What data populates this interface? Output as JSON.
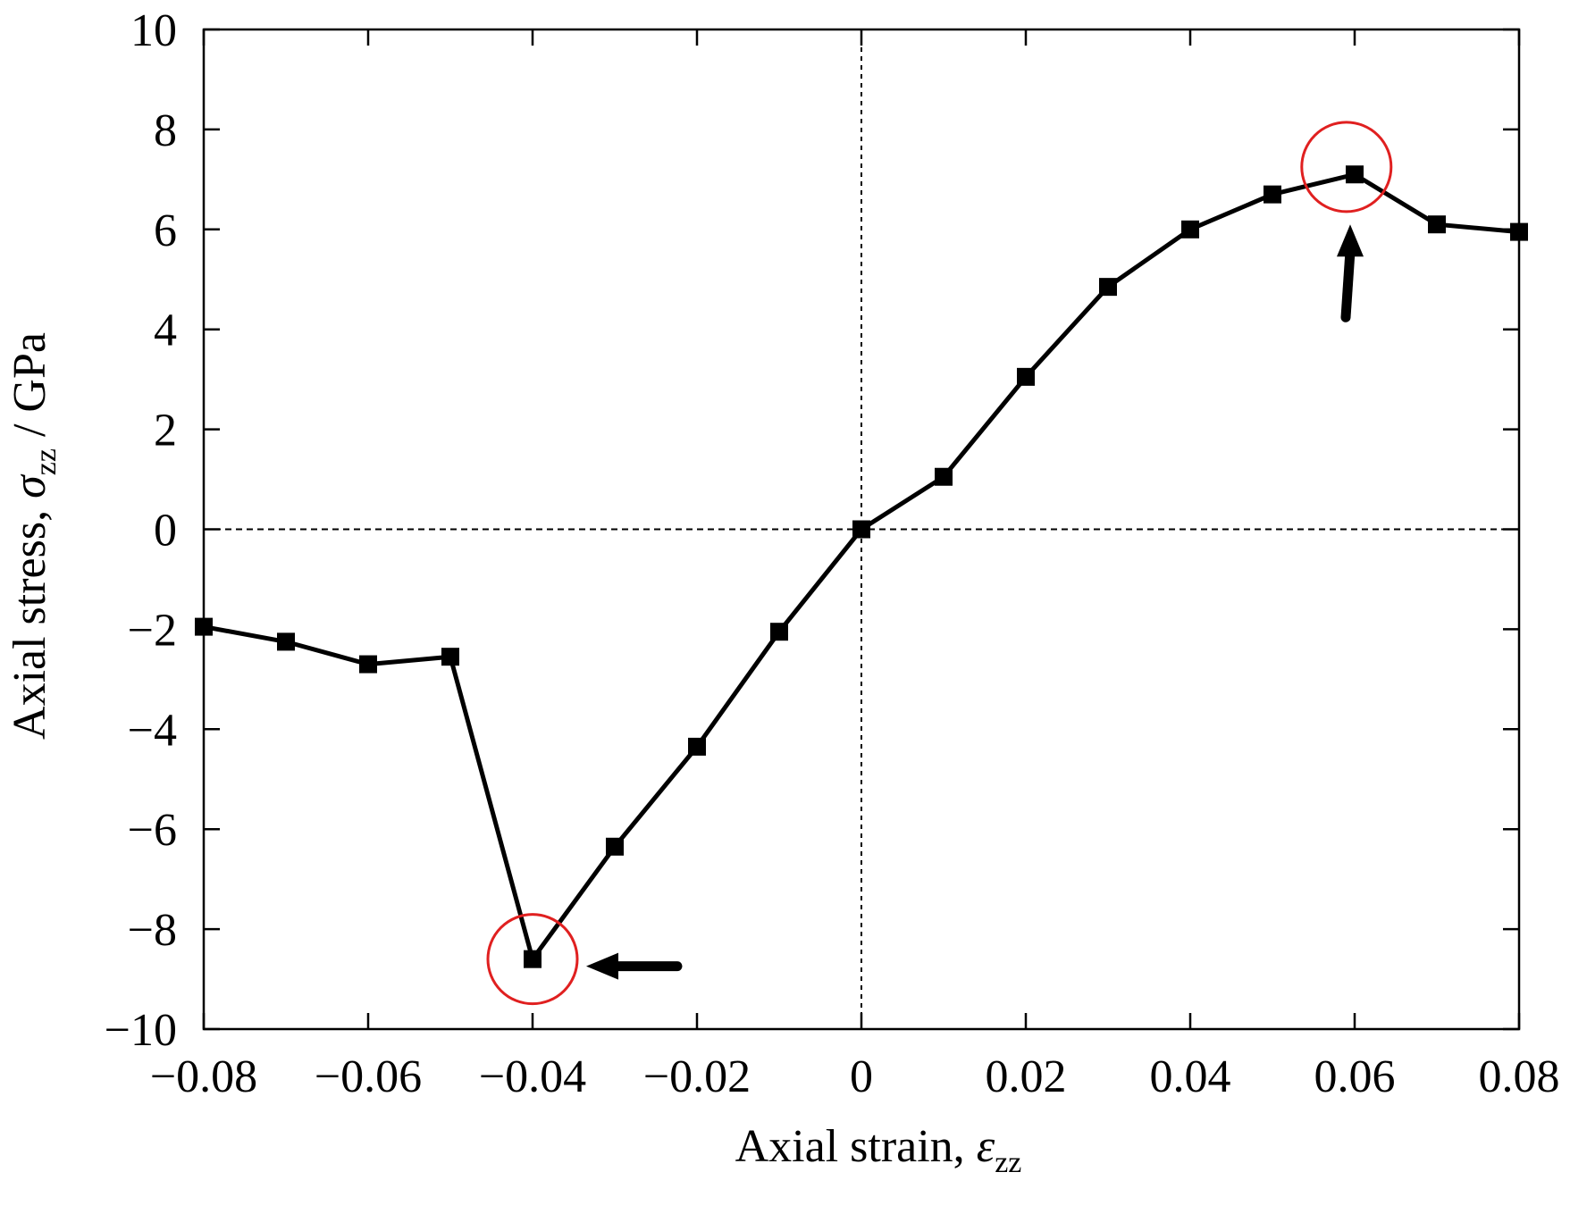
{
  "chart_data": {
    "type": "line",
    "xlabel": {
      "main": "Axial strain, ",
      "symbol": "ε",
      "subscript": "zz"
    },
    "ylabel": {
      "main": "Axial stress, ",
      "symbol": "σ",
      "subscript": "zz",
      "unit": " / GPa"
    },
    "xlim": [
      -0.08,
      0.08
    ],
    "ylim": [
      -10,
      10
    ],
    "xticks": [
      -0.08,
      -0.06,
      -0.04,
      -0.02,
      0,
      0.02,
      0.04,
      0.06,
      0.08
    ],
    "xtick_labels": [
      "−0.08",
      "−0.06",
      "−0.04",
      "−0.02",
      "0",
      "0.02",
      "0.04",
      "0.06",
      "0.08"
    ],
    "yticks": [
      -10,
      -8,
      -6,
      -4,
      -2,
      0,
      2,
      4,
      6,
      8,
      10
    ],
    "ytick_labels": [
      "−10",
      "−8",
      "−6",
      "−4",
      "−2",
      "0",
      "2",
      "4",
      "6",
      "8",
      "10"
    ],
    "grid": false,
    "zero_lines": true,
    "series": [
      {
        "color": "#000000",
        "marker": "square",
        "x": [
          -0.08,
          -0.07,
          -0.06,
          -0.05,
          -0.04,
          -0.03,
          -0.02,
          -0.01,
          0,
          0.01,
          0.02,
          0.03,
          0.04,
          0.05,
          0.06,
          0.07,
          0.08
        ],
        "y": [
          -1.95,
          -2.25,
          -2.7,
          -2.55,
          -8.6,
          -6.35,
          -4.35,
          -2.05,
          0,
          1.05,
          3.05,
          4.85,
          6.0,
          6.7,
          7.1,
          6.1,
          5.95
        ]
      }
    ],
    "annotations": [
      {
        "type": "circle",
        "color": "#e02020",
        "x": -0.04,
        "y": -8.6
      },
      {
        "type": "circle",
        "color": "#e02020",
        "x": 0.059,
        "y": 7.25
      },
      {
        "type": "arrow",
        "color": "#000000",
        "direction": "left",
        "target_x": -0.04,
        "target_y": -8.6
      },
      {
        "type": "arrow",
        "color": "#000000",
        "direction": "up",
        "target_x": 0.06,
        "target_y": 7.1
      }
    ]
  }
}
